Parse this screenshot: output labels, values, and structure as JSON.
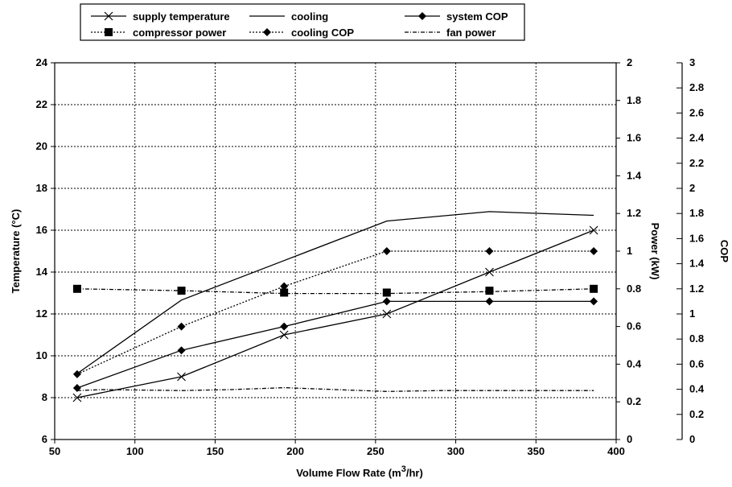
{
  "chart_data": {
    "type": "line",
    "xlabel_main": "Volume Flow Rate (m",
    "xlabel_sup": "3",
    "xlabel_tail": "/hr)",
    "ylabel_left": "Temperature (°C)",
    "ylabel_power": "Power (kW)",
    "ylabel_cop": "COP",
    "xlim": [
      50,
      400
    ],
    "ylim_left": [
      6,
      24
    ],
    "ylim_power": [
      0,
      2
    ],
    "ylim_cop": [
      0,
      3
    ],
    "x_ticks": [
      "50",
      "100",
      "150",
      "200",
      "250",
      "300",
      "350",
      "400"
    ],
    "y_left_ticks": [
      "6",
      "8",
      "10",
      "12",
      "14",
      "16",
      "18",
      "20",
      "22",
      "24"
    ],
    "y_power_ticks": [
      "0",
      "0.2",
      "0.4",
      "0.6",
      "0.8",
      "1",
      "1.2",
      "1.4",
      "1.6",
      "1.8",
      "2"
    ],
    "y_cop_ticks": [
      "0",
      "0.2",
      "0.4",
      "0.6",
      "0.8",
      "1",
      "1.2",
      "1.4",
      "1.6",
      "1.8",
      "2",
      "2.2",
      "2.4",
      "2.6",
      "2.8",
      "3"
    ],
    "grid": true,
    "legend_position": "top",
    "series": [
      {
        "name": "supply temperature",
        "axis": "temperature",
        "marker": "x",
        "line": "solid",
        "x": [
          64,
          129,
          193,
          257,
          321,
          386
        ],
        "y": [
          8.0,
          9.0,
          11.0,
          12.0,
          14.0,
          16.0
        ]
      },
      {
        "name": "compressor power",
        "axis": "power",
        "marker": "square",
        "line": "none",
        "x": [
          64,
          129,
          193,
          257,
          321,
          386
        ],
        "y": [
          0.8,
          0.79,
          0.78,
          0.78,
          0.79,
          0.8
        ]
      },
      {
        "name": "cooling",
        "axis": "power",
        "marker": "none",
        "line": "solid",
        "x": [
          64,
          129,
          193,
          257,
          321,
          386
        ],
        "y": [
          0.35,
          0.74,
          0.95,
          1.16,
          1.21,
          1.19
        ]
      },
      {
        "name": "cooling COP",
        "axis": "cop",
        "marker": "diamond",
        "line": "dotted",
        "x": [
          64,
          129,
          193,
          257,
          321,
          386
        ],
        "y": [
          0.52,
          0.9,
          1.22,
          1.5,
          1.5,
          1.5
        ]
      },
      {
        "name": "system COP",
        "axis": "cop",
        "marker": "diamond",
        "line": "solid",
        "x": [
          64,
          129,
          193,
          257,
          321,
          386
        ],
        "y": [
          0.41,
          0.71,
          0.9,
          1.1,
          1.1,
          1.1
        ]
      },
      {
        "name": "fan power",
        "axis": "power",
        "marker": "none",
        "line": "dashdot",
        "x": [
          64,
          80,
          129,
          160,
          193,
          225,
          257,
          290,
          321,
          386
        ],
        "y": [
          0.26,
          0.265,
          0.26,
          0.265,
          0.275,
          0.265,
          0.255,
          0.26,
          0.26,
          0.26
        ]
      },
      {
        "name": "compressor power (dotted)",
        "axis": "power",
        "marker": "none",
        "line": "dashdot",
        "x": [
          64,
          129,
          193,
          257,
          321,
          386
        ],
        "y": [
          0.8,
          0.79,
          0.775,
          0.775,
          0.785,
          0.8
        ]
      }
    ],
    "legend": [
      {
        "label": "supply temperature",
        "marker": "x",
        "line": "solid"
      },
      {
        "label": "cooling",
        "marker": "none",
        "line": "solid"
      },
      {
        "label": "system COP",
        "marker": "diamond",
        "line": "solid"
      },
      {
        "label": "compressor power",
        "marker": "square",
        "line": "dotted"
      },
      {
        "label": "cooling COP",
        "marker": "diamond",
        "line": "dotted"
      },
      {
        "label": "fan power",
        "marker": "none",
        "line": "dashdot"
      }
    ],
    "colors": {
      "ink": "#000000",
      "background": "#ffffff"
    }
  }
}
